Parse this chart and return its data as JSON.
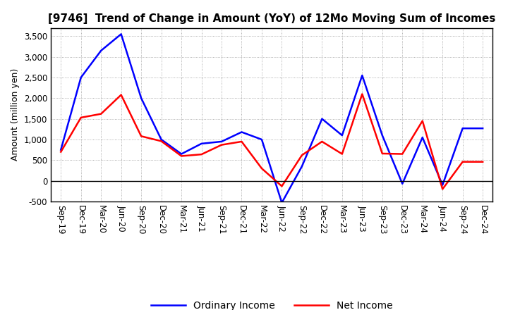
{
  "title": "[9746]  Trend of Change in Amount (YoY) of 12Mo Moving Sum of Incomes",
  "ylabel": "Amount (million yen)",
  "x_labels": [
    "Sep-19",
    "Dec-19",
    "Mar-20",
    "Jun-20",
    "Sep-20",
    "Dec-20",
    "Mar-21",
    "Jun-21",
    "Sep-21",
    "Dec-21",
    "Mar-22",
    "Jun-22",
    "Sep-22",
    "Dec-22",
    "Mar-23",
    "Jun-23",
    "Sep-23",
    "Dec-23",
    "Mar-24",
    "Jun-24",
    "Sep-24",
    "Dec-24"
  ],
  "ordinary_income": [
    750,
    2500,
    3150,
    3550,
    2000,
    1000,
    650,
    900,
    950,
    1180,
    1000,
    -530,
    350,
    1500,
    1100,
    2550,
    1100,
    -70,
    1050,
    -100,
    1270,
    1270
  ],
  "net_income": [
    700,
    1530,
    1620,
    2080,
    1080,
    960,
    600,
    640,
    870,
    950,
    300,
    -130,
    620,
    950,
    650,
    2100,
    660,
    650,
    1450,
    -200,
    460,
    460
  ],
  "ordinary_color": "#0000FF",
  "net_color": "#FF0000",
  "ylim": [
    -500,
    3700
  ],
  "yticks": [
    -500,
    0,
    500,
    1000,
    1500,
    2000,
    2500,
    3000,
    3500
  ],
  "plot_bg_color": "#E8E8F0",
  "background_color": "#FFFFFF",
  "grid_color": "#999999",
  "legend_labels": [
    "Ordinary Income",
    "Net Income"
  ],
  "title_fontsize": 11,
  "label_fontsize": 9,
  "tick_fontsize": 8.5
}
